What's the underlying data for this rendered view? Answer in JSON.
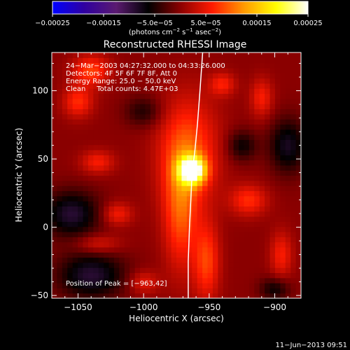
{
  "chart_data": {
    "type": "heatmap",
    "title": "Reconstructed RHESSI Image",
    "xlabel": "Heliocentric X (arcsec)",
    "ylabel": "Heliocentric Y (arcsec)",
    "xlim": [
      -1070,
      -880
    ],
    "ylim": [
      -52,
      128
    ],
    "xticks": [
      {
        "value": -1050,
        "label": "−1050"
      },
      {
        "value": -1000,
        "label": "−1000"
      },
      {
        "value": -950,
        "label": "−950"
      },
      {
        "value": -900,
        "label": "−900"
      }
    ],
    "yticks": [
      {
        "value": -50,
        "label": "−50"
      },
      {
        "value": 0,
        "label": "0"
      },
      {
        "value": 50,
        "label": "50"
      },
      {
        "value": 100,
        "label": "100"
      }
    ],
    "colorbar": {
      "min": -0.00025,
      "max": 0.00025,
      "ticks": [
        {
          "value": -0.00025,
          "label": "−0.00025"
        },
        {
          "value": -0.00015,
          "label": "−0.00015"
        },
        {
          "value": -5e-05,
          "label": "−5.0e−05"
        },
        {
          "value": 5e-05,
          "label": "5.0e−05"
        },
        {
          "value": 0.00015,
          "label": "0.00015"
        },
        {
          "value": 0.00025,
          "label": "0.00025"
        }
      ],
      "units": {
        "a": "(photons cm",
        "b": "−2",
        "c": " s",
        "d": "−1",
        "e": " asec",
        "f": "−2",
        "g": ")"
      },
      "colors": [
        "#0000ff",
        "#3000a0",
        "#5a1a70",
        "#000000",
        "#8a0000",
        "#ff1a00",
        "#ff9a00",
        "#ffff00",
        "#ffffff"
      ]
    },
    "annotations": [
      "24−Mar−2003 04:27:32.000 to 04:33:26.000",
      "Detectors: 4F 5F 6F 7F 8F, Att 0",
      "Energy Range: 25.0 − 50.0 keV",
      "Clean     Total counts: 4.47E+03"
    ],
    "peak_label": "Position of Peak = [−963,42]",
    "peak": {
      "x": -963,
      "y": 42,
      "value": 0.00025
    },
    "limb_curve": [
      [
        -955,
        128
      ],
      [
        -957,
        100
      ],
      [
        -959,
        75
      ],
      [
        -961,
        55
      ],
      [
        -963,
        40
      ],
      [
        -964,
        20
      ],
      [
        -965,
        0
      ],
      [
        -966,
        -25
      ],
      [
        -966,
        -52
      ]
    ],
    "features": [
      {
        "x": -963,
        "y": 42,
        "amp": 0.00024,
        "sx": 7,
        "sy": 7
      },
      {
        "x": -966,
        "y": 55,
        "amp": 9e-05,
        "sx": 16,
        "sy": 28
      },
      {
        "x": -972,
        "y": 10,
        "amp": 8e-05,
        "sx": 9,
        "sy": 30
      },
      {
        "x": -952,
        "y": -25,
        "amp": 8e-05,
        "sx": 7,
        "sy": 20
      },
      {
        "x": -1040,
        "y": 115,
        "amp": 8e-05,
        "sx": 10,
        "sy": 8
      },
      {
        "x": -1050,
        "y": 92,
        "amp": 7e-05,
        "sx": 8,
        "sy": 8
      },
      {
        "x": -1035,
        "y": 48,
        "amp": 6e-05,
        "sx": 9,
        "sy": 6
      },
      {
        "x": -1020,
        "y": 10,
        "amp": 6e-05,
        "sx": 8,
        "sy": 6
      },
      {
        "x": -1035,
        "y": -12,
        "amp": 5e-05,
        "sx": 12,
        "sy": 5
      },
      {
        "x": -920,
        "y": 20,
        "amp": 7e-05,
        "sx": 10,
        "sy": 8
      },
      {
        "x": -910,
        "y": 95,
        "amp": 6e-05,
        "sx": 6,
        "sy": 10
      },
      {
        "x": -940,
        "y": 105,
        "amp": 6e-05,
        "sx": 7,
        "sy": 6
      },
      {
        "x": -895,
        "y": -20,
        "amp": 6e-05,
        "sx": 6,
        "sy": 12
      },
      {
        "x": -1000,
        "y": -40,
        "amp": 5e-05,
        "sx": 8,
        "sy": 6
      },
      {
        "x": -1055,
        "y": 10,
        "amp": -9e-05,
        "sx": 15,
        "sy": 12
      },
      {
        "x": -1040,
        "y": -35,
        "amp": -9e-05,
        "sx": 18,
        "sy": 12
      },
      {
        "x": -890,
        "y": 60,
        "amp": -8e-05,
        "sx": 10,
        "sy": 14
      },
      {
        "x": -925,
        "y": 60,
        "amp": -6e-05,
        "sx": 8,
        "sy": 8
      },
      {
        "x": -900,
        "y": -45,
        "amp": -6e-05,
        "sx": 8,
        "sy": 6
      },
      {
        "x": -1000,
        "y": 85,
        "amp": -5e-05,
        "sx": 10,
        "sy": 8
      }
    ]
  },
  "footer": {
    "timestamp": "11−Jun−2013 09:51"
  }
}
